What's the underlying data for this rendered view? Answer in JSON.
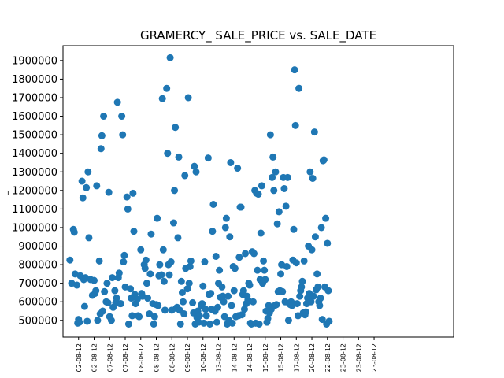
{
  "chart_data": {
    "type": "scatter",
    "title": "GRAMERCY_ SALE_PRICE vs. SALE_DATE",
    "ylabel": "_",
    "xlabel": "",
    "color": "#1f77b4",
    "grid": false,
    "ylim": [
      410000,
      1980000
    ],
    "xlim": [
      -4,
      222
    ],
    "yticks": [
      500000,
      600000,
      700000,
      800000,
      900000,
      1000000,
      1100000,
      1200000,
      1300000,
      1400000,
      1500000,
      1600000,
      1700000,
      1800000,
      1900000
    ],
    "xticks": [
      {
        "pos": 5,
        "label": "02-08-12"
      },
      {
        "pos": 14,
        "label": "02-08-12"
      },
      {
        "pos": 23,
        "label": "07-08-12"
      },
      {
        "pos": 32,
        "label": "07-08-12"
      },
      {
        "pos": 41,
        "label": "08-08-12"
      },
      {
        "pos": 50,
        "label": "08-08-12"
      },
      {
        "pos": 59,
        "label": "08-08-12"
      },
      {
        "pos": 68,
        "label": "09-08-12"
      },
      {
        "pos": 77,
        "label": "10-08-12"
      },
      {
        "pos": 86,
        "label": "13-08-12"
      },
      {
        "pos": 95,
        "label": "14-08-12"
      },
      {
        "pos": 104,
        "label": "14-08-12"
      },
      {
        "pos": 113,
        "label": "15-08-12"
      },
      {
        "pos": 122,
        "label": "15-08-12"
      },
      {
        "pos": 131,
        "label": "17-08-12"
      },
      {
        "pos": 140,
        "label": "20-08-12"
      },
      {
        "pos": 149,
        "label": "22-08-12"
      },
      {
        "pos": 158,
        "label": "23-08-12"
      },
      {
        "pos": 167,
        "label": "23-08-12"
      },
      {
        "pos": 176,
        "label": "23-08-12"
      }
    ],
    "points": [
      [
        0,
        825000
      ],
      [
        1,
        700000
      ],
      [
        2,
        990000
      ],
      [
        2.5,
        975000
      ],
      [
        3,
        750000
      ],
      [
        4,
        690000
      ],
      [
        4.5,
        485000
      ],
      [
        5,
        505000
      ],
      [
        5.5,
        490000
      ],
      [
        6,
        740000
      ],
      [
        7,
        1250000
      ],
      [
        7.5,
        1160000
      ],
      [
        8,
        720000
      ],
      [
        8.5,
        575000
      ],
      [
        9,
        730000
      ],
      [
        9.5,
        1215000
      ],
      [
        10,
        495000
      ],
      [
        10.5,
        1300000
      ],
      [
        11,
        945000
      ],
      [
        12,
        720000
      ],
      [
        13,
        635000
      ],
      [
        14,
        715000
      ],
      [
        14.5,
        645000
      ],
      [
        15,
        660000
      ],
      [
        15.5,
        1225000
      ],
      [
        16,
        500000
      ],
      [
        17,
        820000
      ],
      [
        17.5,
        535000
      ],
      [
        18,
        1425000
      ],
      [
        18.5,
        1495000
      ],
      [
        19,
        550000
      ],
      [
        19.5,
        1600000
      ],
      [
        20,
        655000
      ],
      [
        21,
        600000
      ],
      [
        21.5,
        700000
      ],
      [
        22,
        595000
      ],
      [
        22.5,
        1190000
      ],
      [
        23,
        520000
      ],
      [
        24,
        500000
      ],
      [
        24.5,
        730000
      ],
      [
        25,
        570000
      ],
      [
        26,
        660000
      ],
      [
        26.5,
        595000
      ],
      [
        27,
        620000
      ],
      [
        27.5,
        1675000
      ],
      [
        28,
        730000
      ],
      [
        28.5,
        755000
      ],
      [
        29,
        590000
      ],
      [
        29.5,
        590000
      ],
      [
        30,
        1600000
      ],
      [
        30.5,
        1500000
      ],
      [
        31,
        815000
      ],
      [
        31.5,
        850000
      ],
      [
        32,
        680000
      ],
      [
        33,
        1165000
      ],
      [
        33.5,
        1100000
      ],
      [
        34,
        480000
      ],
      [
        35,
        670000
      ],
      [
        35.5,
        620000
      ],
      [
        36,
        525000
      ],
      [
        36.5,
        1185000
      ],
      [
        37,
        980000
      ],
      [
        37.5,
        640000
      ],
      [
        38,
        590000
      ],
      [
        39,
        615000
      ],
      [
        39.5,
        525000
      ],
      [
        40,
        520000
      ],
      [
        41,
        880000
      ],
      [
        41.5,
        645000
      ],
      [
        42,
        630000
      ],
      [
        43,
        800000
      ],
      [
        43.5,
        780000
      ],
      [
        44,
        825000
      ],
      [
        44.5,
        700000
      ],
      [
        45,
        620000
      ],
      [
        46,
        535000
      ],
      [
        46.5,
        750000
      ],
      [
        47,
        965000
      ],
      [
        48,
        590000
      ],
      [
        48.5,
        480000
      ],
      [
        49,
        520000
      ],
      [
        50,
        585000
      ],
      [
        50.5,
        1050000
      ],
      [
        51,
        580000
      ],
      [
        51.5,
        740000
      ],
      [
        52,
        800000
      ],
      [
        53,
        745000
      ],
      [
        53.5,
        1695000
      ],
      [
        54,
        880000
      ],
      [
        54.5,
        710000
      ],
      [
        55,
        555000
      ],
      [
        56,
        1750000
      ],
      [
        56.5,
        1400000
      ],
      [
        57,
        800000
      ],
      [
        57.5,
        745000
      ],
      [
        58,
        1915000
      ],
      [
        58.5,
        815000
      ],
      [
        59,
        555000
      ],
      [
        60,
        1025000
      ],
      [
        60.5,
        1200000
      ],
      [
        61,
        1540000
      ],
      [
        61.5,
        565000
      ],
      [
        62,
        570000
      ],
      [
        62.5,
        945000
      ],
      [
        63,
        1380000
      ],
      [
        63.5,
        555000
      ],
      [
        64,
        480000
      ],
      [
        64.5,
        710000
      ],
      [
        65,
        650000
      ],
      [
        65.5,
        600000
      ],
      [
        66,
        535000
      ],
      [
        66.5,
        1280000
      ],
      [
        67,
        780000
      ],
      [
        68,
        670000
      ],
      [
        68.5,
        1700000
      ],
      [
        69,
        700000
      ],
      [
        69.5,
        790000
      ],
      [
        70,
        820000
      ],
      [
        71,
        595000
      ],
      [
        71.5,
        540000
      ],
      [
        72,
        1330000
      ],
      [
        72.5,
        480000
      ],
      [
        73,
        1300000
      ],
      [
        73.5,
        515000
      ],
      [
        74,
        550000
      ],
      [
        74.5,
        490000
      ],
      [
        75,
        525000
      ],
      [
        76,
        580000
      ],
      [
        76.5,
        590000
      ],
      [
        77,
        685000
      ],
      [
        77.5,
        485000
      ],
      [
        78,
        815000
      ],
      [
        78.5,
        560000
      ],
      [
        79,
        525000
      ],
      [
        80,
        1375000
      ],
      [
        80.5,
        640000
      ],
      [
        81,
        480000
      ],
      [
        81.5,
        645000
      ],
      [
        82,
        560000
      ],
      [
        82.5,
        980000
      ],
      [
        83,
        1125000
      ],
      [
        84,
        550000
      ],
      [
        84.5,
        845000
      ],
      [
        85,
        490000
      ],
      [
        85.5,
        570000
      ],
      [
        86,
        700000
      ],
      [
        86.5,
        770000
      ],
      [
        87,
        625000
      ],
      [
        88,
        680000
      ],
      [
        88.5,
        630000
      ],
      [
        89,
        600000
      ],
      [
        89.5,
        520000
      ],
      [
        90,
        1000000
      ],
      [
        90.5,
        1050000
      ],
      [
        91,
        480000
      ],
      [
        91.5,
        630000
      ],
      [
        92,
        500000
      ],
      [
        92.5,
        950000
      ],
      [
        93,
        1350000
      ],
      [
        93.5,
        580000
      ],
      [
        94,
        485000
      ],
      [
        94.5,
        790000
      ],
      [
        95,
        660000
      ],
      [
        95.5,
        780000
      ],
      [
        96,
        520000
      ],
      [
        97,
        1320000
      ],
      [
        97.5,
        525000
      ],
      [
        98,
        840000
      ],
      [
        98.5,
        1110000
      ],
      [
        99,
        1110000
      ],
      [
        99.5,
        530000
      ],
      [
        100,
        640000
      ],
      [
        100.5,
        660000
      ],
      [
        101,
        560000
      ],
      [
        101.5,
        860000
      ],
      [
        102,
        590000
      ],
      [
        102.5,
        630000
      ],
      [
        103,
        610000
      ],
      [
        103.5,
        700000
      ],
      [
        104,
        690000
      ],
      [
        104.5,
        485000
      ],
      [
        105,
        480000
      ],
      [
        105.5,
        870000
      ],
      [
        106,
        600000
      ],
      [
        106.5,
        860000
      ],
      [
        107,
        1200000
      ],
      [
        107.5,
        485000
      ],
      [
        108,
        1185000
      ],
      [
        108.5,
        770000
      ],
      [
        109,
        1180000
      ],
      [
        109.5,
        480000
      ],
      [
        110,
        720000
      ],
      [
        110.5,
        970000
      ],
      [
        111,
        1225000
      ],
      [
        111.5,
        700000
      ],
      [
        112,
        820000
      ],
      [
        112.5,
        770000
      ],
      [
        113,
        720000
      ],
      [
        113.5,
        550000
      ],
      [
        114,
        490000
      ],
      [
        114.5,
        510000
      ],
      [
        115,
        580000
      ],
      [
        115.5,
        540000
      ],
      [
        116,
        1500000
      ],
      [
        116.5,
        560000
      ],
      [
        117,
        1270000
      ],
      [
        117.5,
        1380000
      ],
      [
        118,
        1200000
      ],
      [
        118.5,
        580000
      ],
      [
        119,
        1300000
      ],
      [
        119.5,
        585000
      ],
      [
        120,
        1020000
      ],
      [
        120.5,
        655000
      ],
      [
        121,
        1085000
      ],
      [
        121.5,
        660000
      ],
      [
        122,
        750000
      ],
      [
        122.5,
        800000
      ],
      [
        123,
        655000
      ],
      [
        123.5,
        1270000
      ],
      [
        124,
        1210000
      ],
      [
        124.5,
        600000
      ],
      [
        125,
        1115000
      ],
      [
        125.5,
        790000
      ],
      [
        126,
        1270000
      ],
      [
        126.5,
        500000
      ],
      [
        127,
        590000
      ],
      [
        127.5,
        585000
      ],
      [
        128,
        600000
      ],
      [
        128.5,
        580000
      ],
      [
        129,
        825000
      ],
      [
        129.5,
        990000
      ],
      [
        130,
        1850000
      ],
      [
        130.5,
        1550000
      ],
      [
        131,
        810000
      ],
      [
        131.5,
        590000
      ],
      [
        132,
        525000
      ],
      [
        132.5,
        1750000
      ],
      [
        133,
        630000
      ],
      [
        133.5,
        660000
      ],
      [
        134,
        680000
      ],
      [
        134.5,
        710000
      ],
      [
        135,
        540000
      ],
      [
        135.5,
        820000
      ],
      [
        136,
        530000
      ],
      [
        136.5,
        545000
      ],
      [
        137,
        590000
      ],
      [
        137.5,
        620000
      ],
      [
        138,
        900000
      ],
      [
        138.5,
        645000
      ],
      [
        139,
        1300000
      ],
      [
        139.5,
        600000
      ],
      [
        140,
        880000
      ],
      [
        140.5,
        1265000
      ],
      [
        141,
        630000
      ],
      [
        141.5,
        1515000
      ],
      [
        142,
        950000
      ],
      [
        142.5,
        665000
      ],
      [
        143,
        750000
      ],
      [
        143.5,
        680000
      ],
      [
        144,
        600000
      ],
      [
        144.5,
        580000
      ],
      [
        145,
        620000
      ],
      [
        145.5,
        1000000
      ],
      [
        146,
        505000
      ],
      [
        146.5,
        1360000
      ],
      [
        147,
        1365000
      ],
      [
        147.5,
        680000
      ],
      [
        148,
        1050000
      ],
      [
        148.5,
        480000
      ],
      [
        149,
        915000
      ],
      [
        149.5,
        660000
      ],
      [
        150,
        495000
      ]
    ]
  }
}
